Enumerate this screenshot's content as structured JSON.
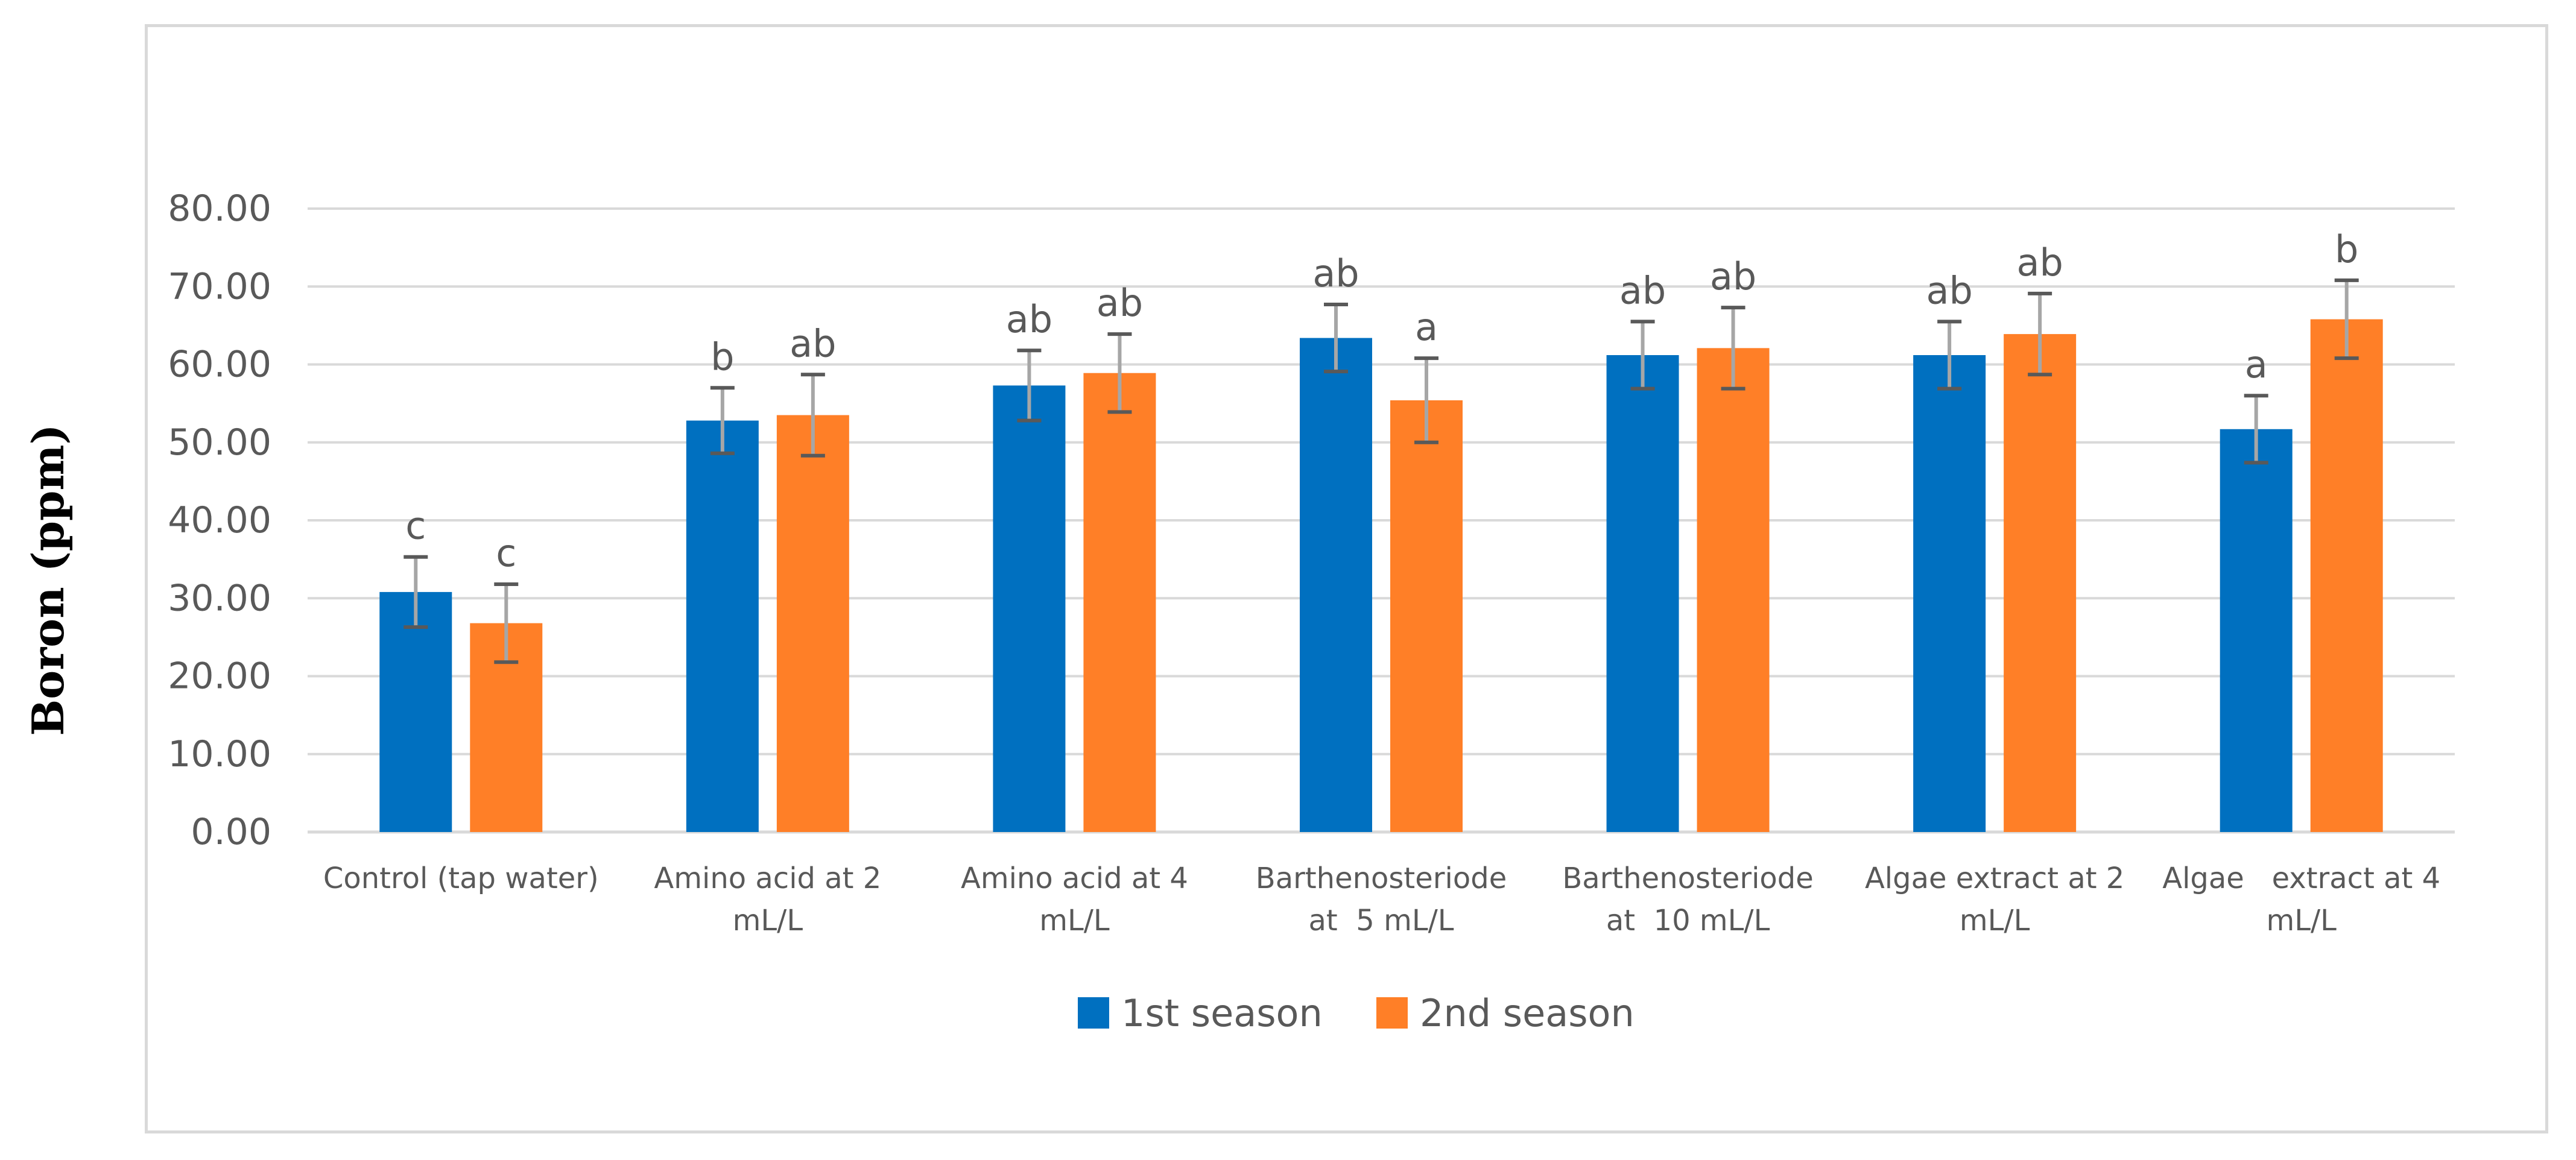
{
  "chart_data": {
    "type": "bar",
    "title": "",
    "xlabel": "",
    "ylabel": "Boron (ppm)",
    "ylim": [
      0,
      80
    ],
    "ytick_step": 10,
    "ytick_labels": [
      "0.00",
      "10.00",
      "20.00",
      "30.00",
      "40.00",
      "50.00",
      "60.00",
      "70.00",
      "80.00"
    ],
    "grid": true,
    "legend": "bottom",
    "categories": [
      [
        "Control (tap water)"
      ],
      [
        "Amino acid at 2",
        "mL/L"
      ],
      [
        "Amino acid at 4",
        "mL/L"
      ],
      [
        "Barthenosteriode",
        "at  5 mL/L"
      ],
      [
        "Barthenosteriode",
        "at  10 mL/L"
      ],
      [
        "Algae extract at 2",
        "mL/L"
      ],
      [
        "Algae   extract at 4",
        "mL/L"
      ]
    ],
    "series": [
      {
        "name": "1st season",
        "color": "#0070c0",
        "values": [
          30.8,
          52.8,
          57.3,
          63.4,
          61.2,
          61.2,
          51.7
        ],
        "errors": [
          4.5,
          4.2,
          4.5,
          4.3,
          4.3,
          4.3,
          4.3
        ],
        "letters": [
          "c",
          "b",
          "ab",
          "ab",
          "ab",
          "ab",
          "a"
        ]
      },
      {
        "name": "2nd season",
        "color": "#ff7f27",
        "values": [
          26.8,
          53.5,
          58.9,
          55.4,
          62.1,
          63.9,
          65.8
        ],
        "errors": [
          5.0,
          5.2,
          5.0,
          5.4,
          5.2,
          5.2,
          5.0
        ],
        "letters": [
          "c",
          "ab",
          "ab",
          "a",
          "ab",
          "ab",
          "b"
        ]
      }
    ]
  }
}
